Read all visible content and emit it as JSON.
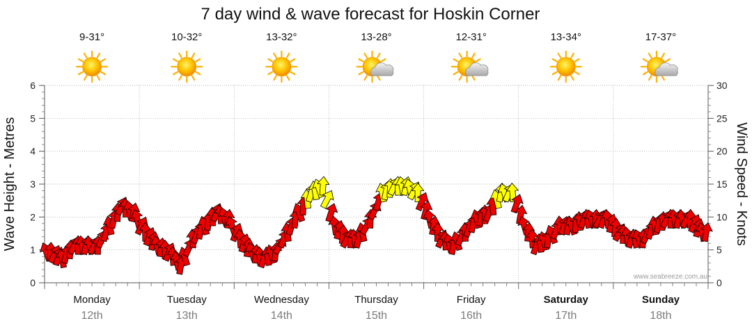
{
  "chart_data": {
    "type": "line",
    "title": "7 day wind & wave forecast for Hoskin Corner",
    "ylabel_left": "Wave Height - Metres",
    "ylabel_right": "Wind Speed - Knots",
    "ylim_left": [
      0,
      6
    ],
    "ylim_right": [
      0,
      30
    ],
    "yticks_left": [
      "0",
      "1",
      "2",
      "3",
      "4",
      "5",
      "6"
    ],
    "yticks_right": [
      "0",
      "5",
      "10",
      "15",
      "20",
      "25",
      "30"
    ],
    "credit": "www.seabreeze.com.au",
    "days": [
      {
        "name": "Monday",
        "date": "12th",
        "bold": false,
        "temp": "9-31°",
        "icon": "sun-icon"
      },
      {
        "name": "Tuesday",
        "date": "13th",
        "bold": false,
        "temp": "10-32°",
        "icon": "sun-icon"
      },
      {
        "name": "Wednesday",
        "date": "14th",
        "bold": false,
        "temp": "13-32°",
        "icon": "sun-icon"
      },
      {
        "name": "Thursday",
        "date": "15th",
        "bold": false,
        "temp": "13-28°",
        "icon": "partly-cloudy-icon"
      },
      {
        "name": "Friday",
        "date": "16th",
        "bold": false,
        "temp": "12-31°",
        "icon": "partly-cloudy-icon"
      },
      {
        "name": "Saturday",
        "date": "17th",
        "bold": true,
        "temp": "13-34°",
        "icon": "sun-icon"
      },
      {
        "name": "Sunday",
        "date": "18th",
        "bold": true,
        "temp": "17-37°",
        "icon": "partly-cloudy-icon"
      }
    ],
    "series": [
      {
        "name": "Wind Speed (knots)",
        "note": "8 points per day (3-hourly); arrows coloured by speed",
        "colors": {
          "calm": "#ee0000",
          "strong": "#ffff00",
          "outline": "#000000"
        },
        "strong_threshold": 13,
        "values": [
          5,
          4,
          6,
          6,
          6,
          9,
          12,
          11,
          8,
          6,
          5,
          3,
          7,
          9,
          11,
          10,
          7,
          5,
          4,
          5,
          8,
          11,
          14,
          15,
          9,
          7,
          7,
          10,
          14,
          15,
          15,
          14,
          10,
          7,
          6,
          8,
          10,
          11,
          14,
          14,
          9,
          6,
          7,
          9,
          9,
          10,
          10,
          10,
          8,
          7,
          7,
          9,
          10,
          10,
          10,
          8
        ]
      }
    ]
  }
}
